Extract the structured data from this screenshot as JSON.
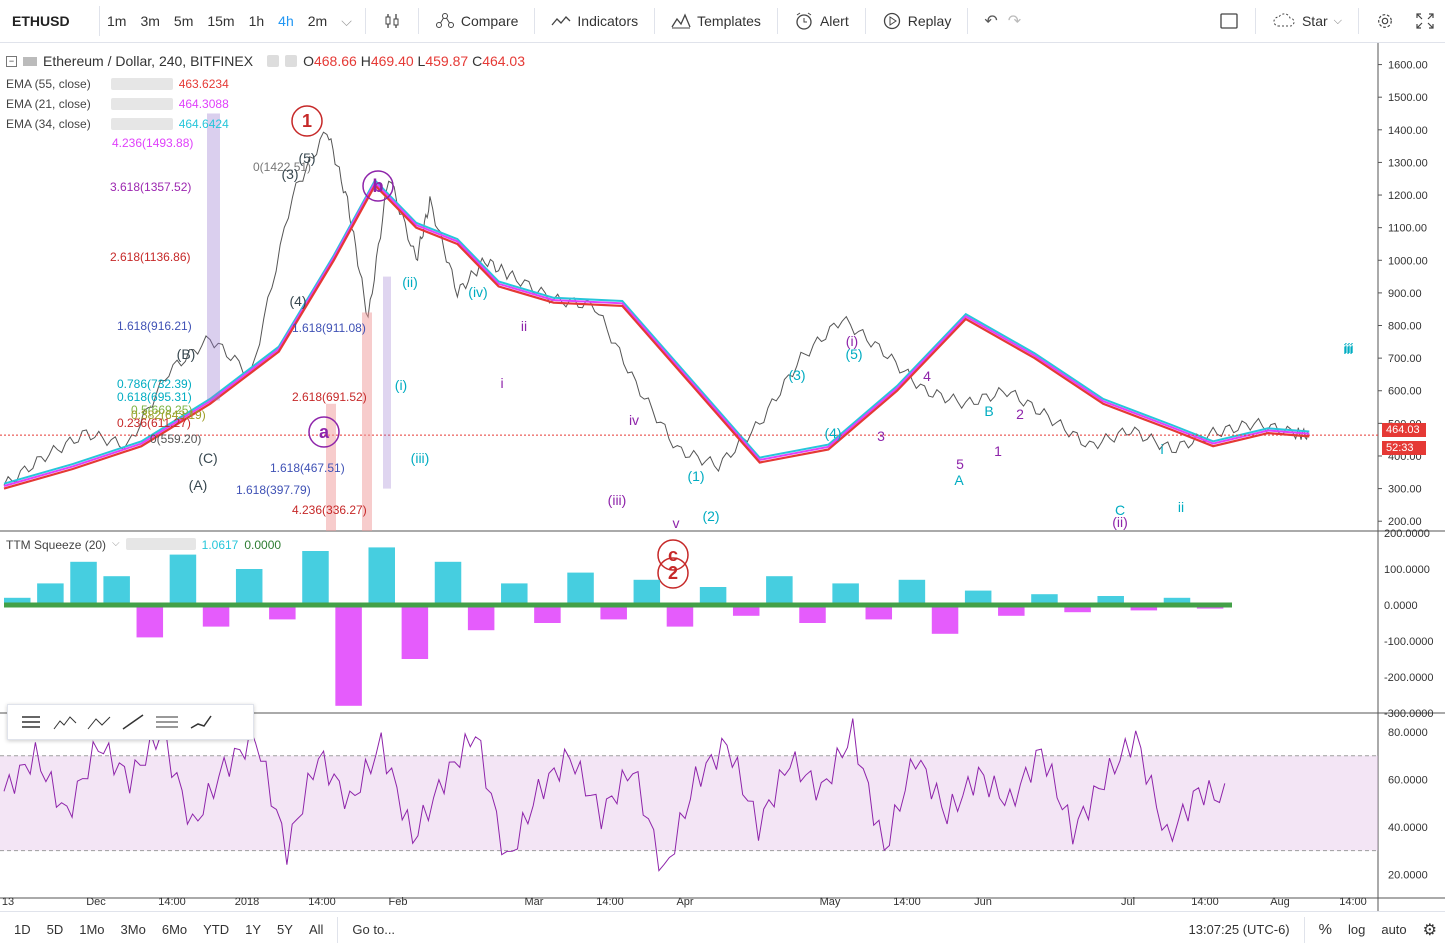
{
  "toolbar": {
    "symbol": "ETHUSD",
    "intervals": [
      "1m",
      "3m",
      "5m",
      "15m",
      "1h",
      "4h",
      "2m"
    ],
    "active_interval": "4h",
    "compare": "Compare",
    "indicators": "Indicators",
    "templates": "Templates",
    "alert": "Alert",
    "replay": "Replay",
    "star": "Star"
  },
  "main_legend": {
    "title": "Ethereum / Dollar, 240, BITFINEX",
    "o_label": "O",
    "o": "468.66",
    "h_label": "H",
    "h": "469.40",
    "l_label": "L",
    "l": "459.87",
    "c_label": "C",
    "c": "464.03"
  },
  "ema": [
    {
      "label": "EMA (55, close)",
      "value": "463.6234",
      "color": "#e53935"
    },
    {
      "label": "EMA (21, close)",
      "value": "464.3088",
      "color": "#e040fb"
    },
    {
      "label": "EMA (34, close)",
      "value": "464.6424",
      "color": "#26c6da"
    }
  ],
  "ttm": {
    "label": "TTM Squeeze (20)",
    "v1": "1.0617",
    "v2": "0.0000"
  },
  "price_tag": {
    "value": "464.03",
    "timer": "52:33"
  },
  "bottom": {
    "ranges": [
      "1D",
      "5D",
      "1Mo",
      "3Mo",
      "6Mo",
      "YTD",
      "1Y",
      "5Y",
      "All"
    ],
    "goto": "Go to...",
    "clock": "13:07:25 (UTC-6)",
    "pct": "%",
    "log": "log",
    "auto": "auto"
  },
  "chart_data": [
    {
      "type": "line",
      "title": "Ethereum / Dollar, 240, BITFINEX",
      "x_tick_labels": [
        "13",
        "Dec",
        "14:00",
        "2018",
        "14:00",
        "Feb",
        "Mar",
        "14:00",
        "Apr",
        "May",
        "14:00",
        "Jun",
        "Jul",
        "14:00",
        "Aug",
        "14:00"
      ],
      "y_ticks": [
        200,
        300,
        400,
        500,
        600,
        700,
        800,
        900,
        1000,
        1100,
        1200,
        1300,
        1400,
        1500,
        1600
      ],
      "y_tick_labels": [
        "200.00",
        "300.00",
        "400.00",
        "500.00",
        "600.00",
        "700.00",
        "800.00",
        "900.00",
        "1000.00",
        "1100.00",
        "1200.00",
        "1300.00",
        "1400.00",
        "1500.00",
        "1600.00"
      ],
      "ylim": [
        170,
        1660
      ],
      "series": [
        {
          "name": "EMA (55, close)",
          "color": "#e53935",
          "x": [
            0,
            0.05,
            0.1,
            0.15,
            0.2,
            0.24,
            0.27,
            0.3,
            0.33,
            0.36,
            0.4,
            0.45,
            0.5,
            0.55,
            0.6,
            0.65,
            0.7,
            0.75,
            0.8,
            0.85,
            0.88,
            0.92,
            0.95
          ],
          "values": [
            300,
            360,
            430,
            560,
            720,
            1000,
            1230,
            1100,
            1050,
            920,
            870,
            860,
            620,
            380,
            420,
            600,
            820,
            700,
            560,
            480,
            430,
            470,
            460
          ]
        },
        {
          "name": "Price",
          "x": [
            0,
            0.03,
            0.06,
            0.09,
            0.12,
            0.15,
            0.18,
            0.21,
            0.235,
            0.25,
            0.265,
            0.28,
            0.3,
            0.31,
            0.33,
            0.35,
            0.37,
            0.4,
            0.43,
            0.46,
            0.49,
            0.52,
            0.55,
            0.58,
            0.61,
            0.64,
            0.67,
            0.7,
            0.73,
            0.76,
            0.79,
            0.82,
            0.85,
            0.88,
            0.91,
            0.94,
            0.95
          ],
          "values": [
            310,
            400,
            470,
            430,
            660,
            760,
            650,
            1200,
            1400,
            1180,
            820,
            1260,
            1000,
            1180,
            900,
            1000,
            950,
            880,
            860,
            620,
            420,
            370,
            500,
            700,
            820,
            720,
            600,
            560,
            600,
            520,
            430,
            480,
            420,
            470,
            500,
            470,
            464
          ]
        }
      ],
      "labels_on_chart": [
        "1",
        "(5)",
        "(3)",
        "(4)",
        "b",
        "a",
        "(i)",
        "(ii)",
        "(iii)",
        "(iv)",
        "i",
        "ii",
        "iii",
        "iv",
        "v",
        "c",
        "2",
        "(i)",
        "(ii)",
        "(iii)",
        "i",
        "ii",
        "iii",
        "(1)",
        "(2)",
        "(3)",
        "(4)",
        "(5)",
        "(B)",
        "(C)",
        "(A)",
        "A",
        "B",
        "C",
        "1",
        "2",
        "3",
        "4",
        "5"
      ],
      "fib_labels": [
        "4.236(1493.88)",
        "3.618(1357.52)",
        "2.618(1136.86)",
        "1.618(916.21)",
        "0.786(732.39)",
        "0.618(695.31)",
        "0.5(669.25)",
        "0.382(643.19)",
        "0.236(611.27)",
        "0(559.20)",
        "0(1422.51)",
        "1.618(911.08)",
        "2.618(691.52)",
        "1.618(467.51)",
        "1.618(397.79)",
        "4.236(336.27)"
      ]
    },
    {
      "type": "bar",
      "title": "TTM Squeeze (20)",
      "y_ticks": [
        -300,
        -200,
        -100,
        0,
        100,
        200
      ],
      "y_tick_labels": [
        "-300.0000",
        "-200.0000",
        "-100.0000",
        "0.0000",
        "100.0000",
        "200.0000"
      ],
      "ylim": [
        -300,
        200
      ],
      "values": [
        20,
        60,
        120,
        80,
        -90,
        140,
        -60,
        100,
        -40,
        150,
        -280,
        160,
        -150,
        120,
        -70,
        60,
        -50,
        90,
        -40,
        70,
        -60,
        50,
        -30,
        80,
        -50,
        60,
        -40,
        70,
        -80,
        40,
        -30,
        30,
        -20,
        25,
        -15,
        20,
        -10
      ]
    },
    {
      "type": "line",
      "title": "RSI",
      "y_ticks": [
        20,
        40,
        60,
        80
      ],
      "y_tick_labels": [
        "20.0000",
        "40.0000",
        "60.0000",
        "80.0000"
      ],
      "ylim": [
        10,
        88
      ],
      "band": [
        30,
        70
      ],
      "values": [
        55,
        70,
        45,
        75,
        60,
        80,
        40,
        65,
        78,
        30,
        70,
        50,
        75,
        35,
        60,
        80,
        25,
        55,
        70,
        45,
        65,
        20,
        60,
        75,
        40,
        68,
        55,
        80,
        30,
        70,
        45,
        62,
        50,
        72,
        38,
        60,
        78,
        35,
        55,
        52
      ]
    }
  ]
}
